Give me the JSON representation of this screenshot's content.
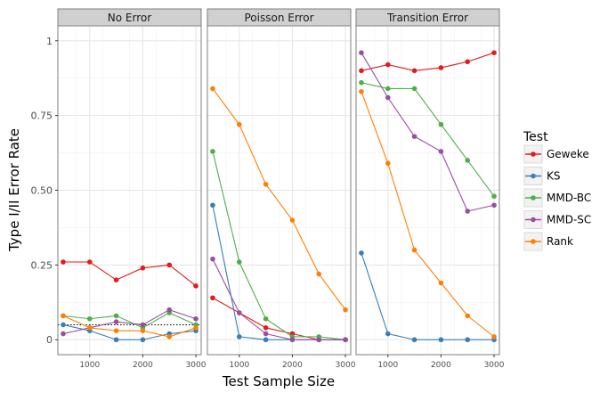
{
  "chart_data": {
    "type": "line",
    "xlabel": "Test Sample Size",
    "ylabel": "Type I/II Error Rate",
    "x": [
      500,
      1000,
      1500,
      2000,
      2500,
      3000
    ],
    "x_ticks": [
      1000,
      2000,
      3000
    ],
    "x_tick_labels": [
      "1000",
      "2000",
      "3000"
    ],
    "xlim": [
      400,
      3100
    ],
    "ylim": [
      -0.05,
      1.05
    ],
    "y_ticks": [
      0,
      0.25,
      0.5,
      0.75,
      1
    ],
    "y_tick_labels": [
      "0",
      "0.25",
      "0.50",
      "0.75",
      "1"
    ],
    "grid": true,
    "legend": {
      "title": "Test",
      "position": "right",
      "entries": [
        {
          "name": "Geweke",
          "color": "#e41a1c"
        },
        {
          "name": "KS",
          "color": "#377eb8"
        },
        {
          "name": "MMD-BC",
          "color": "#4daf4a"
        },
        {
          "name": "MMD-SC",
          "color": "#984ea3"
        },
        {
          "name": "Rank",
          "color": "#ff7f00"
        }
      ]
    },
    "panels": [
      {
        "title": "No Error",
        "reference_line": 0.05,
        "series": [
          {
            "name": "Geweke",
            "values": [
              0.26,
              0.26,
              0.2,
              0.24,
              0.25,
              0.18
            ]
          },
          {
            "name": "KS",
            "values": [
              0.05,
              0.03,
              0.0,
              0.0,
              0.02,
              0.03
            ]
          },
          {
            "name": "MMD-BC",
            "values": [
              0.08,
              0.07,
              0.08,
              0.04,
              0.09,
              0.05
            ]
          },
          {
            "name": "MMD-SC",
            "values": [
              0.02,
              0.04,
              0.06,
              0.05,
              0.1,
              0.07
            ]
          },
          {
            "name": "Rank",
            "values": [
              0.08,
              0.04,
              0.03,
              0.03,
              0.01,
              0.04
            ]
          }
        ]
      },
      {
        "title": "Poisson Error",
        "series": [
          {
            "name": "Geweke",
            "values": [
              0.14,
              0.09,
              0.04,
              0.02,
              0.0,
              0.0
            ]
          },
          {
            "name": "KS",
            "values": [
              0.45,
              0.01,
              0.0,
              0.0,
              0.0,
              0.0
            ]
          },
          {
            "name": "MMD-BC",
            "values": [
              0.63,
              0.26,
              0.07,
              0.01,
              0.01,
              0.0
            ]
          },
          {
            "name": "MMD-SC",
            "values": [
              0.27,
              0.09,
              0.02,
              0.0,
              0.0,
              0.0
            ]
          },
          {
            "name": "Rank",
            "values": [
              0.84,
              0.72,
              0.52,
              0.4,
              0.22,
              0.1
            ]
          }
        ]
      },
      {
        "title": "Transition Error",
        "series": [
          {
            "name": "Geweke",
            "values": [
              0.9,
              0.92,
              0.9,
              0.91,
              0.93,
              0.96
            ]
          },
          {
            "name": "KS",
            "values": [
              0.29,
              0.02,
              0.0,
              0.0,
              0.0,
              0.0
            ]
          },
          {
            "name": "MMD-BC",
            "values": [
              0.86,
              0.84,
              0.84,
              0.72,
              0.6,
              0.48
            ]
          },
          {
            "name": "MMD-SC",
            "values": [
              0.96,
              0.81,
              0.68,
              0.63,
              0.43,
              0.45
            ]
          },
          {
            "name": "Rank",
            "values": [
              0.83,
              0.59,
              0.3,
              0.19,
              0.08,
              0.01
            ]
          }
        ]
      }
    ]
  }
}
